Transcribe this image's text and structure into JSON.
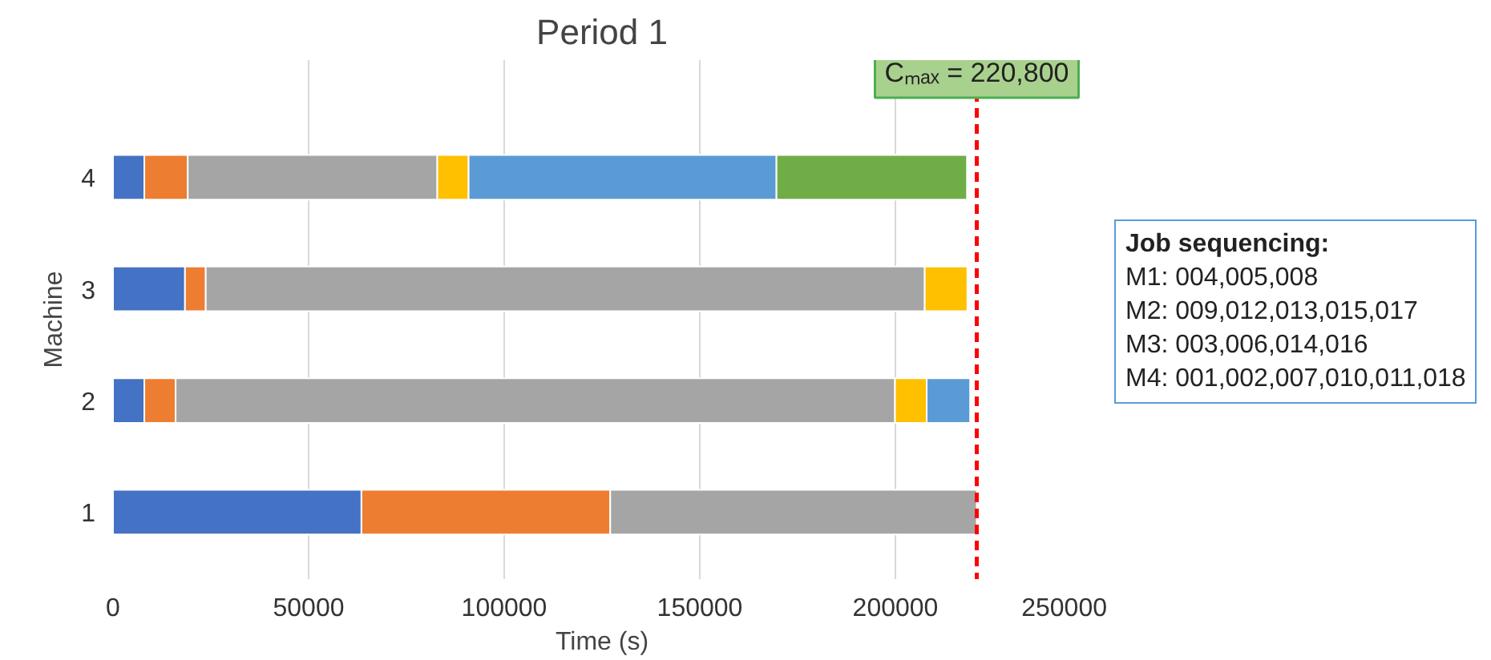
{
  "chart_data": {
    "type": "bar",
    "orientation": "horizontal",
    "stacked": true,
    "title": "Period 1",
    "xlabel": "Time (s)",
    "ylabel": "Machine",
    "categories": [
      "4",
      "3",
      "2",
      "1"
    ],
    "series": [
      {
        "color": "#4472c4",
        "values": [
          8000,
          18400,
          8000,
          63500
        ]
      },
      {
        "color": "#ed7d31",
        "values": [
          11100,
          5300,
          8000,
          63600
        ]
      },
      {
        "color": "#a5a5a5",
        "values": [
          63800,
          183800,
          183900,
          93700
        ]
      },
      {
        "color": "#ffc000",
        "values": [
          8000,
          10900,
          8100,
          null
        ]
      },
      {
        "color": "#5b9bd5",
        "values": [
          78700,
          null,
          11100,
          null
        ]
      },
      {
        "color": "#70ad47",
        "values": [
          48700,
          null,
          null,
          null
        ]
      }
    ],
    "xlim": [
      0,
      250000
    ],
    "xticks": [
      0,
      50000,
      100000,
      150000,
      200000,
      250000
    ],
    "grid": "x",
    "ref_lines": [
      {
        "axis": "x",
        "value": 220800,
        "label": "Cₘₐₓ = 220,800",
        "color": "#ff0000",
        "line_style": "dashed"
      }
    ],
    "annotations": [
      "Job sequencing:",
      "M1: 004,005,008",
      "M2: 009,012,013,015,017",
      "M3: 003,006,014,016",
      "M4: 001,002,007,010,011,018"
    ]
  }
}
